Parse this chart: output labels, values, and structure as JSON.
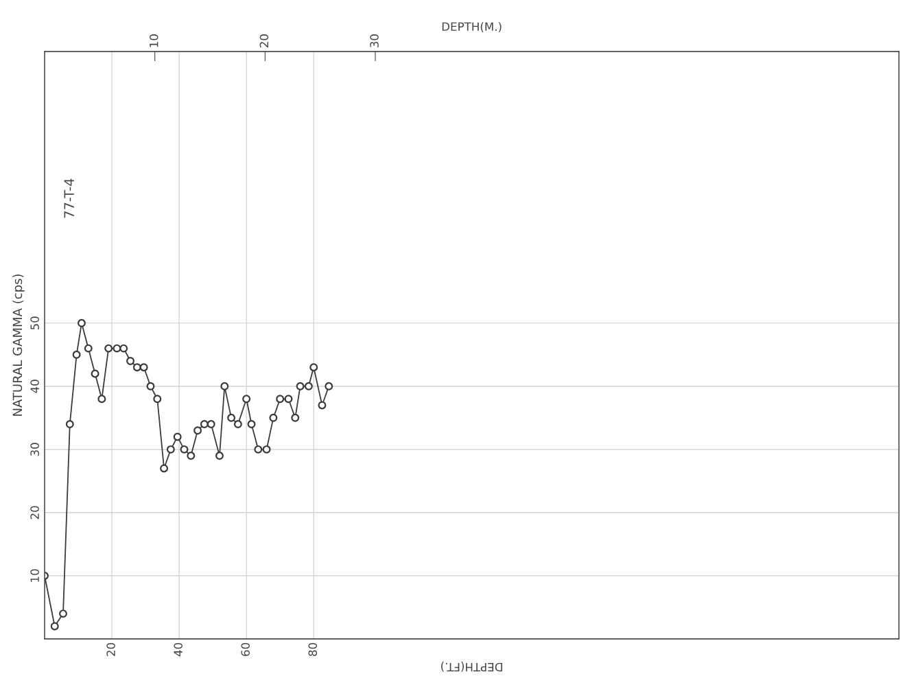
{
  "chart_data": {
    "type": "line",
    "xlabel": "DEPTH(FT.)",
    "ylabel": "NATURAL GAMMA (cps)",
    "x2label": "DEPTH(M.)",
    "annotations": [
      "77-T-4"
    ],
    "x": [
      0,
      3,
      5.5,
      7.5,
      9.5,
      11,
      13,
      15,
      17,
      19,
      21.5,
      23.5,
      25.5,
      27.5,
      29.5,
      31.5,
      33.5,
      35.5,
      37.5,
      39.5,
      41.5,
      43.5,
      45.5,
      47.5,
      49.5,
      52,
      53.5,
      55.5,
      57.5,
      60,
      61.5,
      63.5,
      66,
      68,
      70,
      72.5,
      74.5,
      76,
      78.5,
      80,
      82.5,
      84.5
    ],
    "series": [
      {
        "color": "#3a3a3a",
        "values": [
          10,
          2,
          4,
          34,
          45,
          50,
          46,
          42,
          38,
          46,
          46,
          46,
          44,
          43,
          43,
          40,
          38,
          27,
          30,
          32,
          30,
          29,
          33,
          34,
          34,
          29,
          40,
          35,
          34,
          38,
          34,
          30,
          30,
          35,
          38,
          38,
          35,
          40,
          40,
          43,
          37,
          40
        ]
      }
    ],
    "xlim": [
      0,
      254
    ],
    "xticks": [
      20,
      40,
      60,
      80
    ],
    "x2lim": [
      0,
      77.5
    ],
    "x2ticks": [
      10,
      20,
      30
    ],
    "ylim": [
      0,
      93
    ],
    "yticks": [
      10,
      20,
      30,
      40,
      50
    ],
    "grid": true,
    "marker": "circle",
    "line_style": "solid"
  }
}
